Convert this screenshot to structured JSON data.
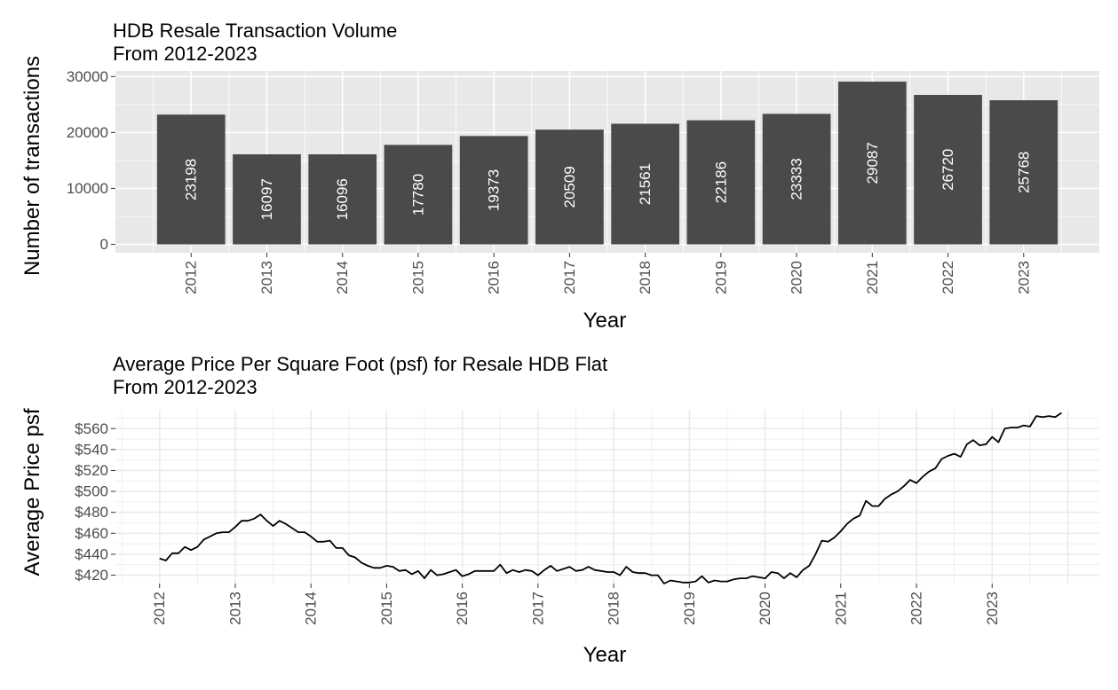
{
  "chart_data": [
    {
      "type": "bar",
      "title": "HDB Resale Transaction Volume",
      "subtitle": "From 2012-2023",
      "xlabel": "Year",
      "ylabel": "Number of transactions",
      "categories": [
        "2012",
        "2013",
        "2014",
        "2015",
        "2016",
        "2017",
        "2018",
        "2019",
        "2020",
        "2021",
        "2022",
        "2023"
      ],
      "values": [
        23198,
        16097,
        16096,
        17780,
        19373,
        20509,
        21561,
        22186,
        23333,
        29087,
        26720,
        25768
      ],
      "data_labels": [
        "23198",
        "16097",
        "16096",
        "17780",
        "19373",
        "20509",
        "21561",
        "22186",
        "23333",
        "29087",
        "26720",
        "25768"
      ],
      "ylim": [
        -1500,
        31000
      ],
      "yticks": [
        0,
        10000,
        20000,
        30000
      ],
      "ytick_labels": [
        "0",
        "10000",
        "20000",
        "30000"
      ],
      "grid": true,
      "colors": {
        "bar": "#4a4a4a",
        "panel": "#e8e8e8",
        "grid": "#ffffff"
      }
    },
    {
      "type": "line",
      "title": "Average Price Per Square Foot (psf) for Resale HDB Flat",
      "subtitle": "From 2012-2023",
      "xlabel": "Year",
      "ylabel": "Average Price psf",
      "xticks": [
        "2012",
        "2013",
        "2014",
        "2015",
        "2016",
        "2017",
        "2018",
        "2019",
        "2020",
        "2021",
        "2022",
        "2023"
      ],
      "xlim": [
        "2011-06",
        "2024-06"
      ],
      "ylim": [
        412,
        578
      ],
      "yticks": [
        420,
        440,
        460,
        480,
        500,
        520,
        540,
        560
      ],
      "ytick_labels": [
        "$420",
        "$440",
        "$460",
        "$480",
        "$500",
        "$520",
        "$540",
        "$560"
      ],
      "grid": true,
      "series": [
        {
          "x": [
            "2012-01",
            "2012-02",
            "2012-03",
            "2012-04",
            "2012-05",
            "2012-06",
            "2012-07",
            "2012-08",
            "2012-09",
            "2012-10",
            "2012-11",
            "2012-12",
            "2013-01",
            "2013-02",
            "2013-03",
            "2013-04",
            "2013-05",
            "2013-06",
            "2013-07",
            "2013-08",
            "2013-09",
            "2013-10",
            "2013-11",
            "2013-12",
            "2014-01",
            "2014-02",
            "2014-03",
            "2014-04",
            "2014-05",
            "2014-06",
            "2014-07",
            "2014-08",
            "2014-09",
            "2014-10",
            "2014-11",
            "2014-12",
            "2015-01",
            "2015-02",
            "2015-03",
            "2015-04",
            "2015-05",
            "2015-06",
            "2015-07",
            "2015-08",
            "2015-09",
            "2015-10",
            "2015-11",
            "2015-12",
            "2016-01",
            "2016-02",
            "2016-03",
            "2016-04",
            "2016-05",
            "2016-06",
            "2016-07",
            "2016-08",
            "2016-09",
            "2016-10",
            "2016-11",
            "2016-12",
            "2017-01",
            "2017-02",
            "2017-03",
            "2017-04",
            "2017-05",
            "2017-06",
            "2017-07",
            "2017-08",
            "2017-09",
            "2017-10",
            "2017-11",
            "2017-12",
            "2018-01",
            "2018-02",
            "2018-03",
            "2018-04",
            "2018-05",
            "2018-06",
            "2018-07",
            "2018-08",
            "2018-09",
            "2018-10",
            "2018-11",
            "2018-12",
            "2019-01",
            "2019-02",
            "2019-03",
            "2019-04",
            "2019-05",
            "2019-06",
            "2019-07",
            "2019-08",
            "2019-09",
            "2019-10",
            "2019-11",
            "2019-12",
            "2020-01",
            "2020-02",
            "2020-03",
            "2020-04",
            "2020-05",
            "2020-06",
            "2020-07",
            "2020-08",
            "2020-09",
            "2020-10",
            "2020-11",
            "2020-12",
            "2021-01",
            "2021-02",
            "2021-03",
            "2021-04",
            "2021-05",
            "2021-06",
            "2021-07",
            "2021-08",
            "2021-09",
            "2021-10",
            "2021-11",
            "2021-12",
            "2022-01",
            "2022-02",
            "2022-03",
            "2022-04",
            "2022-05",
            "2022-06",
            "2022-07",
            "2022-08",
            "2022-09",
            "2022-10",
            "2022-11",
            "2022-12",
            "2023-01",
            "2023-02",
            "2023-03",
            "2023-04",
            "2023-05",
            "2023-06",
            "2023-07",
            "2023-08",
            "2023-09",
            "2023-10",
            "2023-11",
            "2023-12"
          ],
          "values": [
            436,
            434,
            441,
            441,
            447,
            444,
            447,
            454,
            457,
            460,
            461,
            461,
            466,
            472,
            472,
            474,
            478,
            472,
            467,
            472,
            469,
            465,
            461,
            461,
            457,
            452,
            452,
            453,
            446,
            446,
            439,
            437,
            432,
            429,
            427,
            427,
            429,
            428,
            424,
            425,
            421,
            424,
            417,
            425,
            420,
            421,
            423,
            425,
            419,
            421,
            424,
            424,
            424,
            424,
            430,
            422,
            425,
            423,
            425,
            424,
            420,
            425,
            429,
            424,
            426,
            428,
            424,
            425,
            428,
            425,
            424,
            423,
            423,
            420,
            428,
            423,
            422,
            422,
            420,
            420,
            412,
            415,
            414,
            413,
            413,
            414,
            419,
            413,
            415,
            414,
            414,
            416,
            417,
            417,
            419,
            418,
            417,
            423,
            422,
            417,
            422,
            418,
            425,
            429,
            440,
            453,
            452,
            456,
            462,
            469,
            474,
            477,
            491,
            486,
            486,
            493,
            497,
            500,
            505,
            511,
            508,
            514,
            519,
            522,
            531,
            534,
            536,
            533,
            545,
            549,
            544,
            545,
            552,
            547,
            560,
            561,
            561,
            563,
            562,
            572,
            571,
            572,
            571,
            575
          ]
        }
      ],
      "colors": {
        "line": "#000000",
        "panel": "#ffffff",
        "grid": "#ebebeb"
      }
    }
  ]
}
